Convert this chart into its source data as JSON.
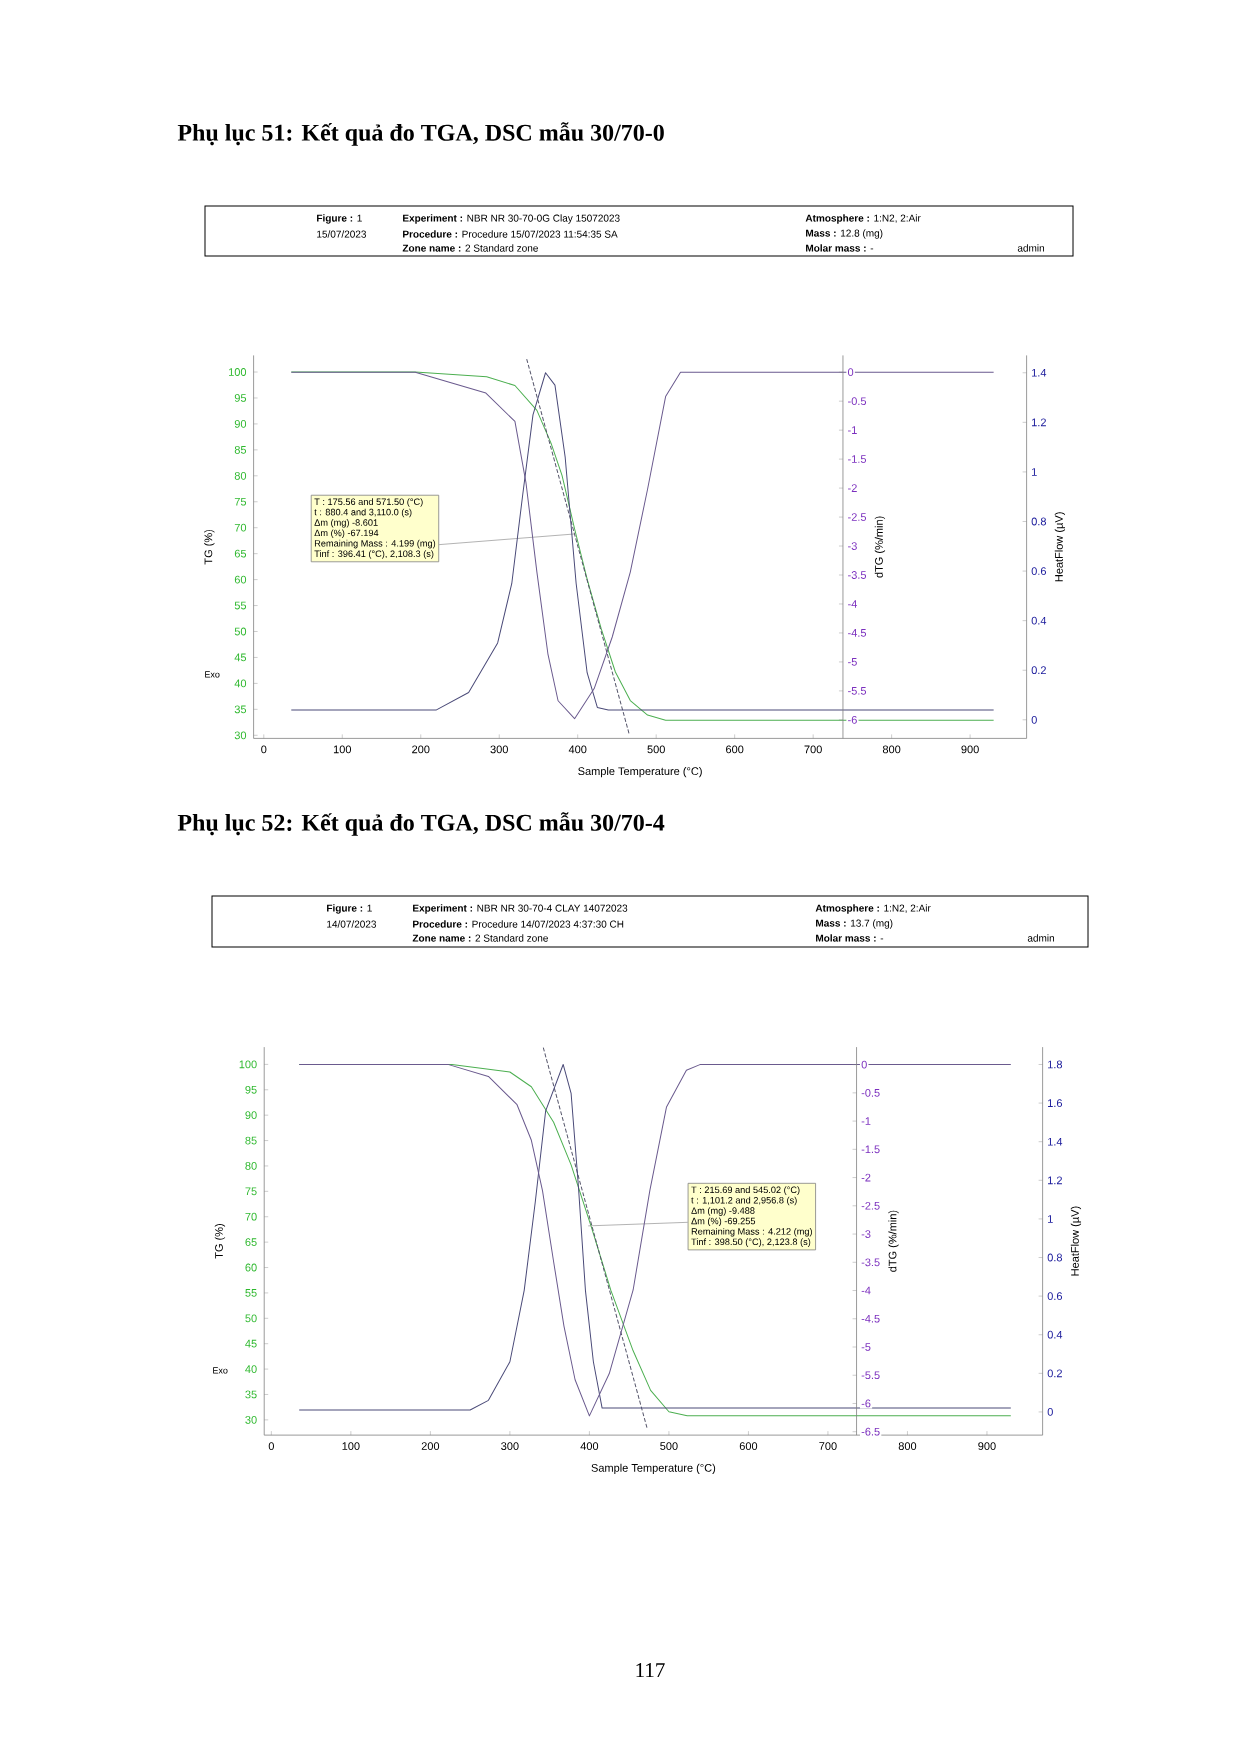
{
  "chart_data": [
    {
      "type": "line",
      "title": "Phụ lục 51: Kết quả đo TGA, DSC mẫu 30/70-0",
      "xlabel": "Sample Temperature (°C)",
      "ylabel": "TG  (%)",
      "y2label": "dTG (%/min)",
      "y3label": "HeatFlow (µV)",
      "xlim": [
        -13,
        972
      ],
      "xticks": [
        0,
        100,
        200,
        300,
        400,
        500,
        600,
        700,
        800,
        900
      ],
      "ylim": [
        29.4,
        103.2
      ],
      "yticks": [
        30,
        35,
        40,
        45,
        50,
        55,
        60,
        65,
        70,
        75,
        80,
        85,
        90,
        95,
        100
      ],
      "y2lim": [
        -6.32,
        0.29
      ],
      "y2ticks": [
        -6,
        -5.5,
        -5,
        -4.5,
        -4,
        -3.5,
        -3,
        -2.5,
        -2,
        -1.5,
        -1,
        -0.5,
        0
      ],
      "y3lim": [
        -0.075,
        1.47
      ],
      "y3ticks": [
        0,
        0.2,
        0.4,
        0.6,
        0.8,
        1,
        1.2,
        1.4
      ],
      "series": [
        {
          "color": "#4caf50",
          "axis": "y",
          "x": [
            35,
            193,
            284,
            320,
            348,
            366,
            380,
            396,
            412,
            430,
            448,
            467,
            489,
            512,
            930
          ],
          "values": [
            100,
            100,
            99.1,
            97.4,
            92.6,
            86.3,
            80.1,
            69.8,
            60.1,
            50.5,
            42.2,
            36.7,
            33.9,
            32.9,
            32.9
          ]
        },
        {
          "color": "#6a5a8e",
          "axis": "y2",
          "x": [
            35,
            193,
            283,
            320,
            334,
            348,
            362,
            375,
            396,
            421,
            444,
            467,
            489,
            512,
            531,
            930
          ],
          "values": [
            0,
            0,
            -0.36,
            -0.85,
            -1.9,
            -3.45,
            -4.86,
            -5.67,
            -5.98,
            -5.46,
            -4.57,
            -3.45,
            -2.02,
            -0.42,
            0,
            0
          ]
        },
        {
          "color": "#4a4a78",
          "axis": "y3",
          "x": [
            35,
            220,
            261,
            298,
            316,
            330,
            343,
            359,
            371,
            384,
            398,
            412,
            425,
            439,
            930
          ],
          "values": [
            0.04,
            0.04,
            0.11,
            0.31,
            0.55,
            0.91,
            1.23,
            1.4,
            1.35,
            1.06,
            0.55,
            0.19,
            0.05,
            0.04,
            0.04
          ]
        },
        {
          "color": "#55556a",
          "axis": "y",
          "line_style": "dashed",
          "x": [
            335,
            466
          ],
          "values": [
            102.5,
            30
          ]
        }
      ],
      "annotations": [
        "T : 175.56 and 571.50 (°C)",
        "t : 880.4 and 3,110.0 (s)",
        "Δm (mg) -8.601",
        "Δm (%) -67.194",
        {
          "text": "Remaining Mass : 4.199 (mg)",
          "x": 396.41,
          "y": 68.8
        },
        "Tinf : 396.41 (°C), 2,108.3 (s)",
        "Exo",
        "**Figure :** 1",
        "15/07/2023",
        "**Experiment :** NBR NR 30-70-0G Clay 15072023",
        "**Procedure :** Procedure 15/07/2023 11:54:35 SA",
        "**Zone name :** 2 Standard zone",
        "**Atmosphere :** 1:N2, 2:Air",
        "**Mass :** 12.8 (mg)",
        "**Molar mass :** -",
        "admin"
      ]
    },
    {
      "type": "line",
      "title": "Phụ lục 52: Kết quả đo TGA, DSC mẫu 30/70-4",
      "xlabel": "Sample Temperature (°C)",
      "ylabel": "TG  (%)",
      "y2label": "dTG (%/min)",
      "y3label": "HeatFlow (µV)",
      "xlim": [
        -9,
        970
      ],
      "xticks": [
        0,
        100,
        200,
        300,
        400,
        500,
        600,
        700,
        800,
        900
      ],
      "ylim": [
        27,
        103.4
      ],
      "yticks": [
        30,
        35,
        40,
        45,
        50,
        55,
        60,
        65,
        70,
        75,
        80,
        85,
        90,
        95,
        100
      ],
      "y2lim": [
        -6.56,
        0.31
      ],
      "y2ticks": [
        -6.5,
        -6,
        -5.5,
        -5,
        -4.5,
        -4,
        -3.5,
        -3,
        -2.5,
        -2,
        -1.5,
        -1,
        -0.5,
        0
      ],
      "y3lim": [
        -0.12,
        1.89
      ],
      "y3ticks": [
        0,
        0.2,
        0.4,
        0.6,
        0.8,
        1,
        1.2,
        1.4,
        1.6,
        1.8
      ],
      "series": [
        {
          "color": "#4caf50",
          "axis": "y",
          "x": [
            35,
            227,
            300,
            327,
            355,
            377,
            402,
            427,
            455,
            477,
            500,
            523,
            930
          ],
          "values": [
            100,
            100,
            98.5,
            95.6,
            88.6,
            80.2,
            68.2,
            55.5,
            43.6,
            35.8,
            31.6,
            30.8,
            30.8
          ]
        },
        {
          "color": "#6a5a8e",
          "axis": "y2",
          "x": [
            35,
            223,
            273,
            309,
            327,
            341,
            355,
            368,
            382,
            400,
            425,
            455,
            476,
            497,
            522,
            539,
            930
          ],
          "values": [
            0,
            0,
            -0.21,
            -0.71,
            -1.34,
            -2.23,
            -3.49,
            -4.63,
            -5.58,
            -6.22,
            -5.47,
            -3.99,
            -2.23,
            -0.75,
            -0.1,
            0,
            0
          ]
        },
        {
          "color": "#4a4a78",
          "axis": "y3",
          "x": [
            35,
            250,
            273,
            300,
            318,
            332,
            345,
            367,
            377,
            386,
            395,
            405,
            416,
            930
          ],
          "values": [
            0.01,
            0.01,
            0.06,
            0.26,
            0.63,
            1.09,
            1.56,
            1.8,
            1.65,
            1.18,
            0.63,
            0.26,
            0.02,
            0.02
          ]
        },
        {
          "color": "#55556a",
          "axis": "y",
          "line_style": "dashed",
          "x": [
            342,
            473
          ],
          "values": [
            103.3,
            28.1
          ]
        }
      ],
      "annotations": [
        "T : 215.69 and 545.02 (°C)",
        "t : 1,101.2 and 2,956.8 (s)",
        "Δm (mg) -9.488",
        {
          "text": "Δm (%) -69.255",
          "x": 398.5,
          "y": 68.2
        },
        "Remaining Mass : 4.212 (mg)",
        "Tinf : 398.50 (°C), 2,123.8 (s)",
        "Exo",
        "**Figure :** 1",
        "14/07/2023",
        "**Experiment :** NBR NR 30-70-4 CLAY 14072023",
        "**Procedure :** Procedure 14/07/2023 4:37:30 CH",
        "**Zone name :** 2 Standard zone",
        "**Atmosphere :** 1:N2, 2:Air",
        "**Mass :** 13.7 (mg)",
        "**Molar mass :** -",
        "admin",
        "117"
      ]
    }
  ]
}
